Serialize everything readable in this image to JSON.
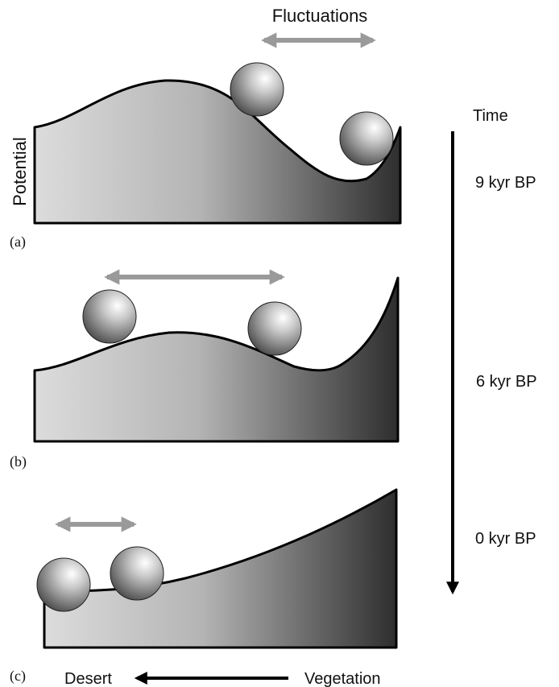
{
  "labels": {
    "fluctuations": "Fluctuations",
    "potential": "Potential",
    "time": "Time",
    "desert": "Desert",
    "vegetation": "Vegetation"
  },
  "times": [
    "9 kyr BP",
    "6 kyr BP",
    "0 kyr BP"
  ],
  "panels": [
    {
      "tag": "(a)"
    },
    {
      "tag": "(b)"
    },
    {
      "tag": "(c)"
    }
  ],
  "colors": {
    "fill_light": "#dcdcdc",
    "fill_dark": "#2e2e2e",
    "outline": "#000000",
    "fluctuation_arrow": "#9a9a9a",
    "axis_arrow": "#000000"
  }
}
